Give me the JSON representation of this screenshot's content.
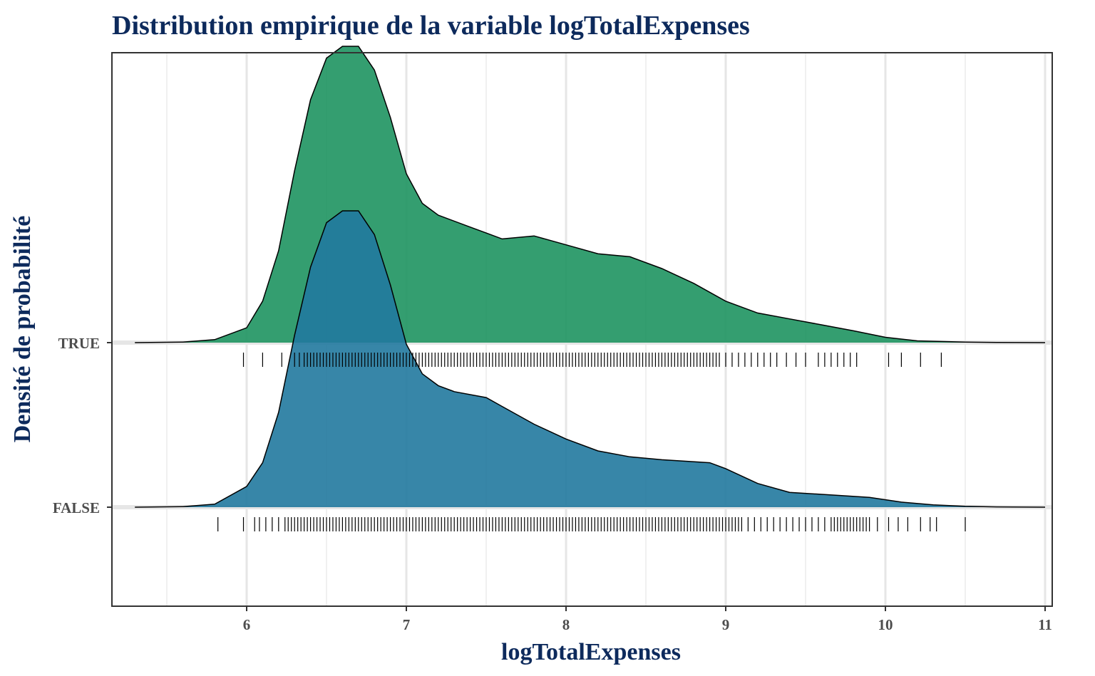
{
  "chart_data": {
    "type": "ridgeline density",
    "title": "Distribution empirique de la variable logTotalExpenses",
    "xlabel": "logTotalExpenses",
    "ylabel": "Densité de probabilité",
    "xlim": [
      5.15,
      11.05
    ],
    "x_ticks": [
      6,
      7,
      8,
      9,
      10,
      11
    ],
    "x_tick_labels": [
      "6",
      "7",
      "8",
      "9",
      "10",
      "11"
    ],
    "categories": [
      "FALSE",
      "TRUE"
    ],
    "grid": true,
    "legend": "none",
    "series": [
      {
        "name": "FALSE",
        "color": "#21799e",
        "x": [
          5.3,
          5.6,
          5.8,
          6.0,
          6.1,
          6.2,
          6.3,
          6.4,
          6.5,
          6.6,
          6.7,
          6.8,
          6.9,
          7.0,
          7.1,
          7.2,
          7.3,
          7.5,
          7.6,
          7.8,
          8.0,
          8.2,
          8.4,
          8.6,
          8.9,
          9.0,
          9.2,
          9.4,
          9.7,
          9.9,
          10.1,
          10.3,
          10.5,
          10.7,
          11.0
        ],
        "y": [
          0.0,
          0.002,
          0.01,
          0.07,
          0.15,
          0.32,
          0.58,
          0.81,
          0.96,
          1.0,
          1.0,
          0.92,
          0.75,
          0.55,
          0.45,
          0.41,
          0.39,
          0.37,
          0.34,
          0.28,
          0.23,
          0.19,
          0.17,
          0.16,
          0.15,
          0.13,
          0.08,
          0.05,
          0.04,
          0.033,
          0.017,
          0.008,
          0.003,
          0.001,
          0.0
        ]
      },
      {
        "name": "TRUE",
        "color": "#1e9460",
        "x": [
          5.3,
          5.6,
          5.8,
          6.0,
          6.1,
          6.2,
          6.3,
          6.4,
          6.5,
          6.6,
          6.7,
          6.8,
          6.9,
          7.0,
          7.1,
          7.2,
          7.4,
          7.5,
          7.6,
          7.8,
          8.0,
          8.2,
          8.4,
          8.6,
          8.8,
          9.0,
          9.2,
          9.4,
          9.6,
          9.8,
          10.0,
          10.2,
          10.5,
          10.7,
          11.0
        ],
        "y": [
          0.0,
          0.002,
          0.01,
          0.05,
          0.14,
          0.31,
          0.58,
          0.82,
          0.96,
          1.0,
          1.0,
          0.92,
          0.76,
          0.57,
          0.47,
          0.43,
          0.39,
          0.37,
          0.35,
          0.36,
          0.33,
          0.3,
          0.29,
          0.25,
          0.2,
          0.14,
          0.1,
          0.08,
          0.06,
          0.04,
          0.018,
          0.006,
          0.002,
          0.0006,
          0.0
        ]
      }
    ],
    "rug": {
      "TRUE": [
        5.98,
        6.1,
        6.22,
        6.3,
        6.33,
        6.36,
        6.38,
        6.4,
        6.42,
        6.44,
        6.46,
        6.48,
        6.5,
        6.52,
        6.54,
        6.56,
        6.58,
        6.6,
        6.62,
        6.64,
        6.66,
        6.68,
        6.7,
        6.72,
        6.74,
        6.76,
        6.78,
        6.8,
        6.82,
        6.84,
        6.86,
        6.88,
        6.9,
        6.92,
        6.94,
        6.96,
        6.98,
        7.0,
        7.02,
        7.04,
        7.06,
        7.08,
        7.1,
        7.12,
        7.14,
        7.16,
        7.18,
        7.2,
        7.22,
        7.24,
        7.26,
        7.28,
        7.3,
        7.32,
        7.34,
        7.36,
        7.38,
        7.4,
        7.42,
        7.44,
        7.46,
        7.48,
        7.5,
        7.52,
        7.54,
        7.56,
        7.58,
        7.6,
        7.62,
        7.64,
        7.66,
        7.68,
        7.7,
        7.72,
        7.74,
        7.76,
        7.78,
        7.8,
        7.82,
        7.84,
        7.86,
        7.88,
        7.9,
        7.92,
        7.94,
        7.96,
        7.98,
        8.0,
        8.02,
        8.04,
        8.06,
        8.08,
        8.1,
        8.12,
        8.14,
        8.16,
        8.18,
        8.2,
        8.22,
        8.24,
        8.26,
        8.28,
        8.3,
        8.32,
        8.34,
        8.36,
        8.38,
        8.4,
        8.42,
        8.44,
        8.46,
        8.48,
        8.5,
        8.52,
        8.54,
        8.56,
        8.58,
        8.6,
        8.62,
        8.64,
        8.66,
        8.68,
        8.7,
        8.72,
        8.74,
        8.76,
        8.78,
        8.8,
        8.82,
        8.84,
        8.86,
        8.88,
        8.9,
        8.92,
        8.94,
        8.96,
        9.0,
        9.04,
        9.08,
        9.12,
        9.16,
        9.2,
        9.24,
        9.28,
        9.32,
        9.38,
        9.44,
        9.5,
        9.58,
        9.62,
        9.66,
        9.7,
        9.74,
        9.78,
        9.82,
        10.02,
        10.1,
        10.22,
        10.35
      ],
      "FALSE": [
        5.82,
        5.98,
        6.05,
        6.08,
        6.12,
        6.16,
        6.2,
        6.24,
        6.26,
        6.28,
        6.3,
        6.32,
        6.34,
        6.36,
        6.38,
        6.4,
        6.42,
        6.44,
        6.46,
        6.48,
        6.5,
        6.52,
        6.54,
        6.56,
        6.58,
        6.6,
        6.62,
        6.64,
        6.66,
        6.68,
        6.7,
        6.72,
        6.74,
        6.76,
        6.78,
        6.8,
        6.82,
        6.84,
        6.86,
        6.88,
        6.9,
        6.92,
        6.94,
        6.96,
        6.98,
        7.0,
        7.02,
        7.04,
        7.06,
        7.08,
        7.1,
        7.12,
        7.14,
        7.16,
        7.18,
        7.2,
        7.22,
        7.24,
        7.26,
        7.28,
        7.3,
        7.32,
        7.34,
        7.36,
        7.38,
        7.4,
        7.42,
        7.44,
        7.46,
        7.48,
        7.5,
        7.52,
        7.54,
        7.56,
        7.58,
        7.6,
        7.62,
        7.64,
        7.66,
        7.68,
        7.7,
        7.72,
        7.74,
        7.76,
        7.78,
        7.8,
        7.82,
        7.84,
        7.86,
        7.88,
        7.9,
        7.92,
        7.94,
        7.96,
        7.98,
        8.0,
        8.02,
        8.04,
        8.06,
        8.08,
        8.1,
        8.12,
        8.14,
        8.16,
        8.18,
        8.2,
        8.22,
        8.24,
        8.26,
        8.28,
        8.3,
        8.32,
        8.34,
        8.36,
        8.38,
        8.4,
        8.42,
        8.44,
        8.46,
        8.48,
        8.5,
        8.52,
        8.54,
        8.56,
        8.58,
        8.6,
        8.62,
        8.64,
        8.66,
        8.68,
        8.7,
        8.72,
        8.74,
        8.76,
        8.78,
        8.8,
        8.82,
        8.84,
        8.86,
        8.88,
        8.9,
        8.92,
        8.94,
        8.96,
        8.98,
        9.0,
        9.02,
        9.04,
        9.06,
        9.08,
        9.1,
        9.14,
        9.18,
        9.22,
        9.26,
        9.3,
        9.34,
        9.38,
        9.42,
        9.46,
        9.5,
        9.54,
        9.58,
        9.62,
        9.66,
        9.68,
        9.7,
        9.72,
        9.74,
        9.76,
        9.78,
        9.8,
        9.82,
        9.84,
        9.86,
        9.88,
        9.9,
        9.95,
        10.02,
        10.08,
        10.14,
        10.22,
        10.28,
        10.32,
        10.5
      ]
    }
  }
}
